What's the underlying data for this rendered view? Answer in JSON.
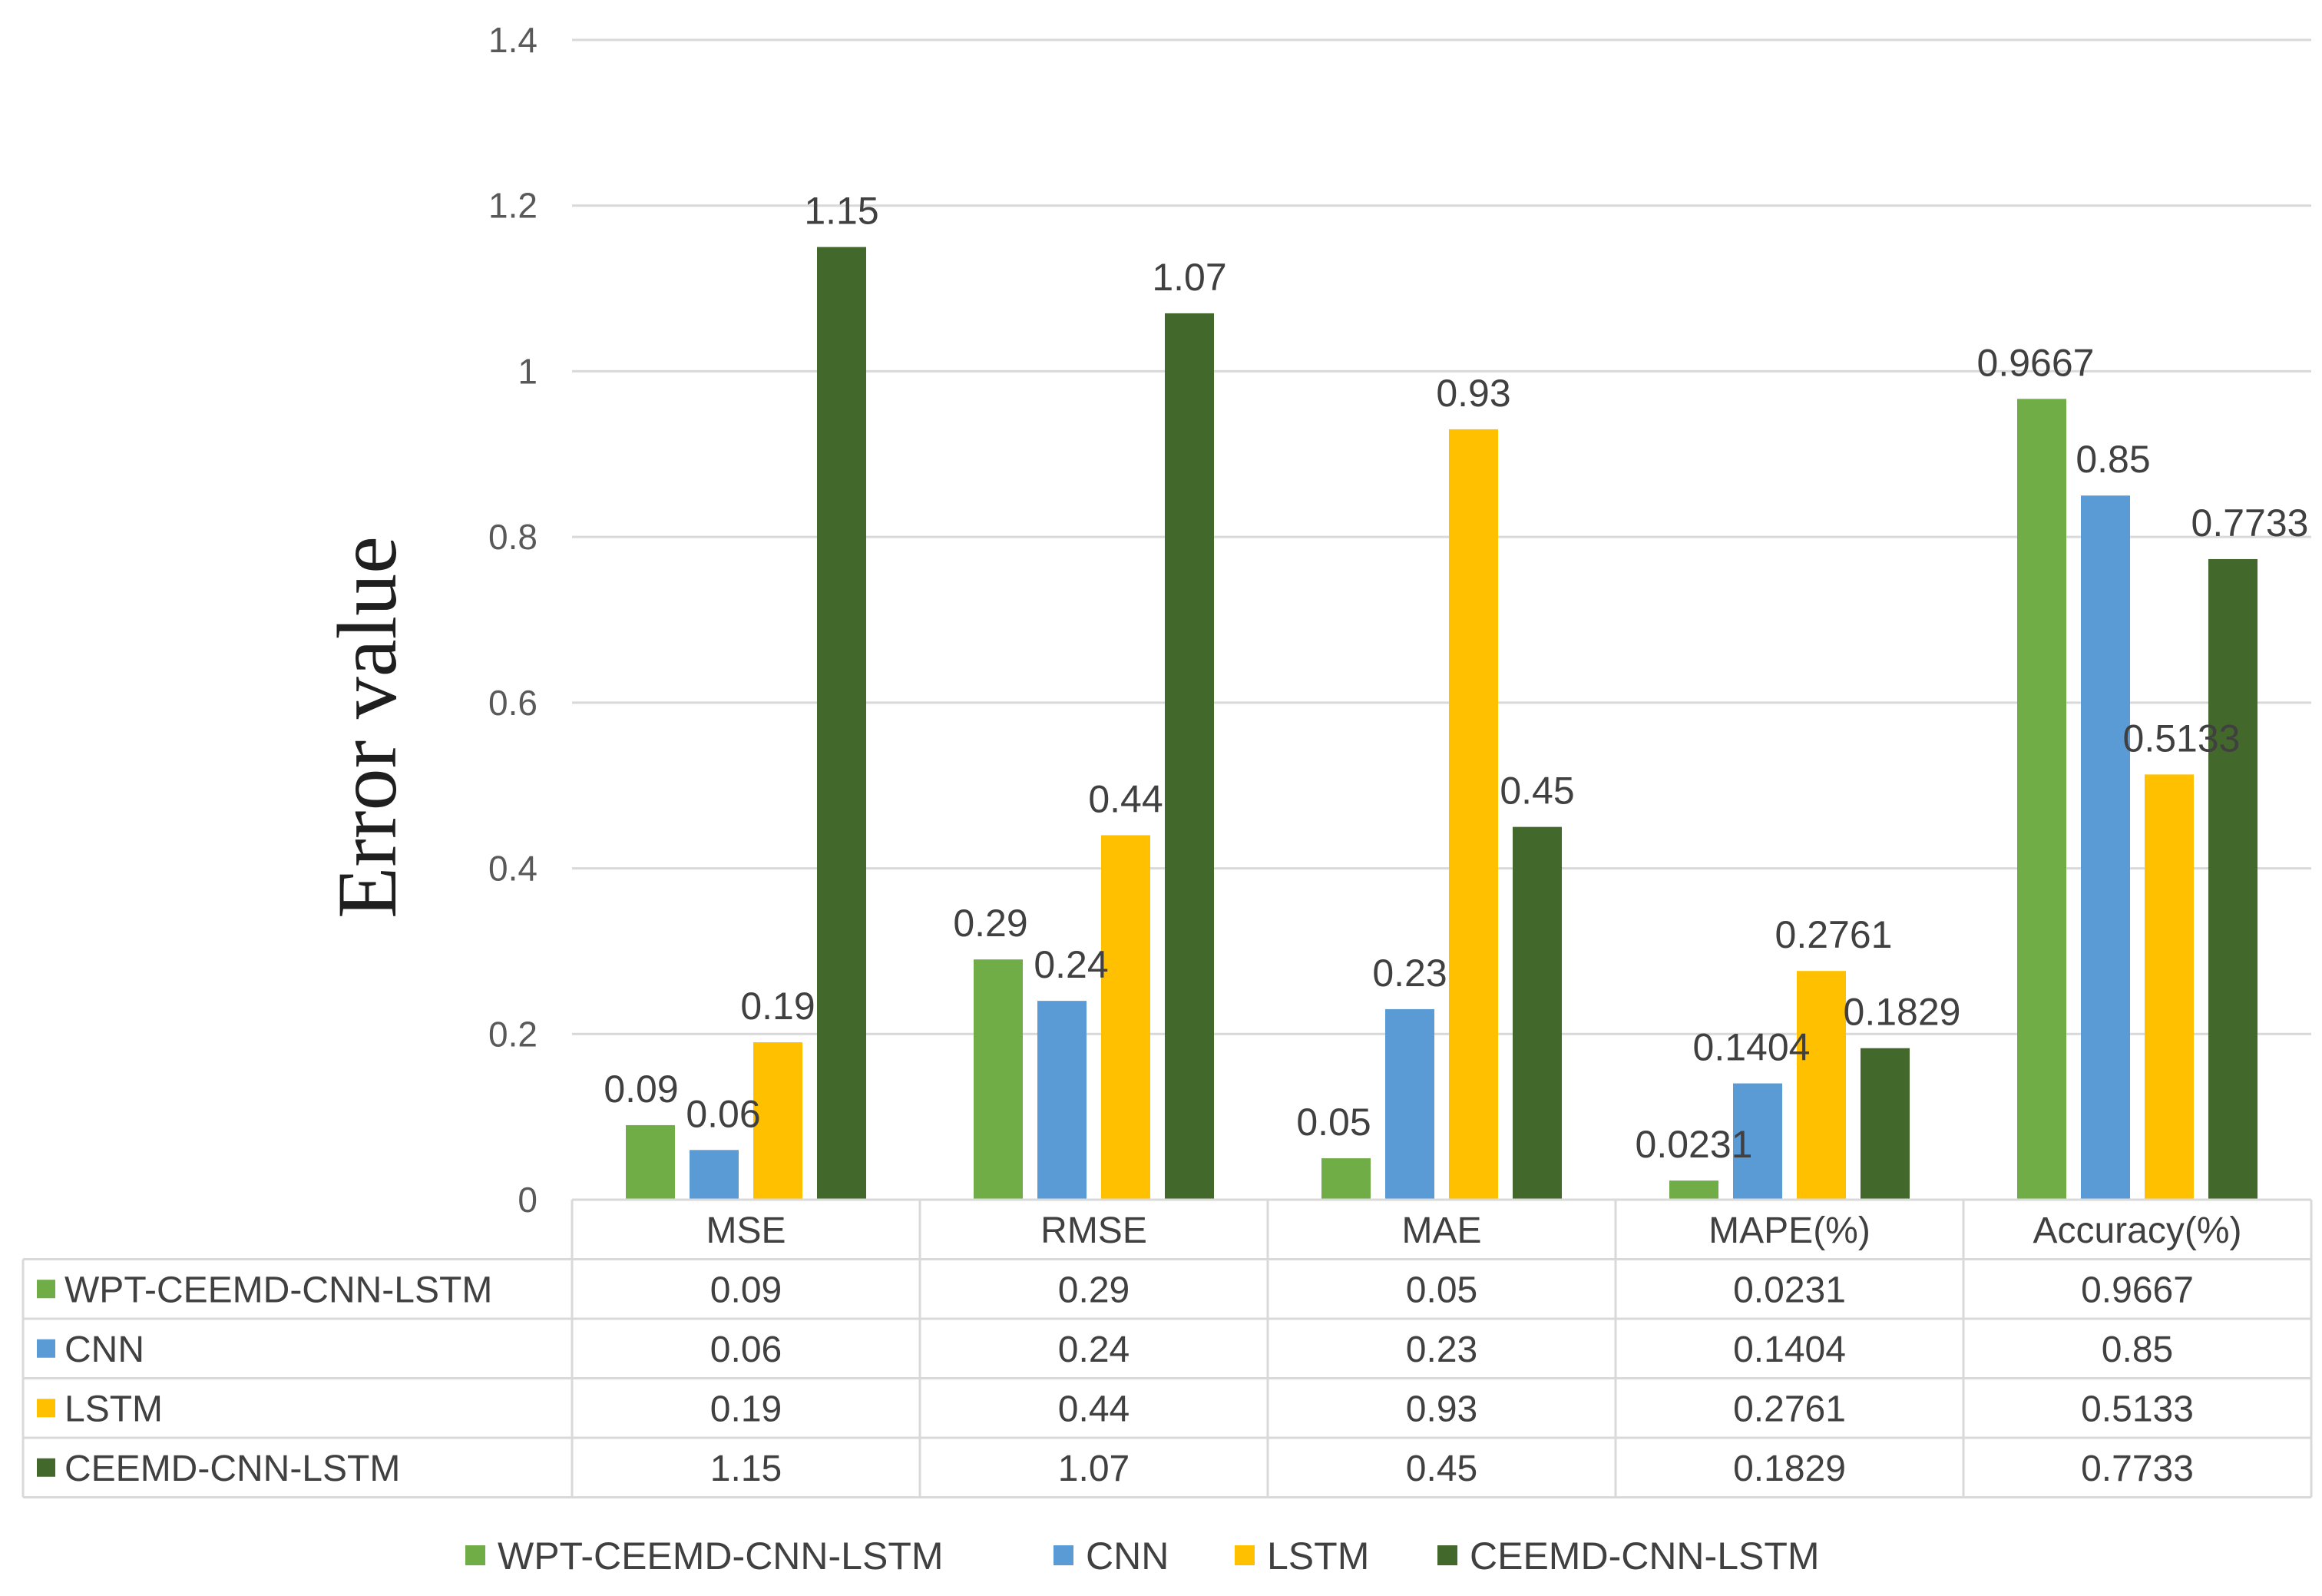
{
  "chart_data": {
    "type": "bar",
    "title": "",
    "xlabel": "",
    "ylabel": "Error value",
    "ylim": [
      0,
      1.4
    ],
    "yticks": [
      0,
      0.2,
      0.4,
      0.6,
      0.8,
      1,
      1.2,
      1.4
    ],
    "ytick_labels": [
      "0",
      "0.2",
      "0.4",
      "0.6",
      "0.8",
      "1",
      "1.2",
      "1.4"
    ],
    "grid": true,
    "legend_position": "bottom",
    "data_table": true,
    "categories": [
      "MSE",
      "RMSE",
      "MAE",
      "MAPE(%)",
      "Accuracy(%)"
    ],
    "series": [
      {
        "name": "WPT-CEEMD-CNN-LSTM",
        "color": "#70AD47",
        "values": [
          0.09,
          0.29,
          0.05,
          0.0231,
          0.9667
        ],
        "labels": [
          "0.09",
          "0.29",
          "0.05",
          "0.0231",
          "0.9667"
        ]
      },
      {
        "name": "CNN",
        "color": "#5B9BD5",
        "values": [
          0.06,
          0.24,
          0.23,
          0.1404,
          0.85
        ],
        "labels": [
          "0.06",
          "0.24",
          "0.23",
          "0.1404",
          "0.85"
        ]
      },
      {
        "name": "LSTM",
        "color": "#FFC000",
        "values": [
          0.19,
          0.44,
          0.93,
          0.2761,
          0.5133
        ],
        "labels": [
          "0.19",
          "0.44",
          "0.93",
          "0.2761",
          "0.5133"
        ]
      },
      {
        "name": "CEEMD-CNN-LSTM",
        "color": "#43682B",
        "values": [
          1.15,
          1.07,
          0.45,
          0.1829,
          0.7733
        ],
        "labels": [
          "1.15",
          "1.07",
          "0.45",
          "0.1829",
          "0.7733"
        ]
      }
    ]
  }
}
